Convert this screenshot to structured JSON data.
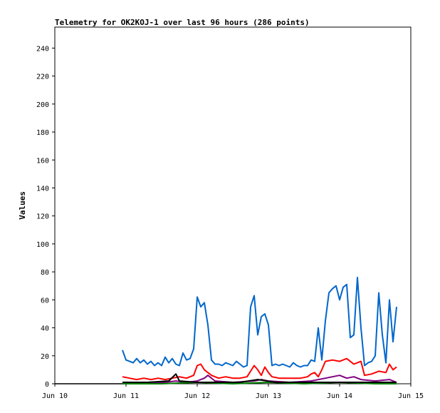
{
  "chart_data": {
    "type": "line",
    "title": "Telemetry for OK2KOJ-1 over last 96 hours (286 points)",
    "xlabel": "",
    "ylabel": "Values",
    "xlim": [
      "Jun 10",
      "Jun 15"
    ],
    "ylim": [
      0,
      255
    ],
    "x_ticks": [
      "Jun 10",
      "Jun 11",
      "Jun 12",
      "Jun 13",
      "Jun 14",
      "Jun 15"
    ],
    "y_ticks": [
      0,
      20,
      40,
      60,
      80,
      100,
      120,
      140,
      160,
      180,
      200,
      220,
      240
    ],
    "grid": false,
    "legend": "none",
    "series": [
      {
        "color": "#0066cc",
        "points": [
          [
            0.95,
            24
          ],
          [
            1.0,
            17
          ],
          [
            1.05,
            16
          ],
          [
            1.1,
            15
          ],
          [
            1.15,
            18
          ],
          [
            1.2,
            15
          ],
          [
            1.25,
            17
          ],
          [
            1.3,
            14
          ],
          [
            1.35,
            16
          ],
          [
            1.4,
            13
          ],
          [
            1.45,
            15
          ],
          [
            1.5,
            13
          ],
          [
            1.55,
            19
          ],
          [
            1.6,
            15
          ],
          [
            1.65,
            18
          ],
          [
            1.7,
            14
          ],
          [
            1.75,
            13
          ],
          [
            1.8,
            22
          ],
          [
            1.85,
            17
          ],
          [
            1.9,
            18
          ],
          [
            1.95,
            25
          ],
          [
            2.0,
            62
          ],
          [
            2.05,
            55
          ],
          [
            2.1,
            58
          ],
          [
            2.15,
            42
          ],
          [
            2.2,
            17
          ],
          [
            2.25,
            14
          ],
          [
            2.3,
            14
          ],
          [
            2.35,
            13
          ],
          [
            2.4,
            15
          ],
          [
            2.45,
            14
          ],
          [
            2.5,
            13
          ],
          [
            2.55,
            16
          ],
          [
            2.6,
            14
          ],
          [
            2.65,
            12
          ],
          [
            2.7,
            13
          ],
          [
            2.75,
            55
          ],
          [
            2.8,
            63
          ],
          [
            2.85,
            35
          ],
          [
            2.9,
            48
          ],
          [
            2.95,
            50
          ],
          [
            3.0,
            42
          ],
          [
            3.05,
            13
          ],
          [
            3.1,
            14
          ],
          [
            3.15,
            13
          ],
          [
            3.2,
            14
          ],
          [
            3.25,
            13
          ],
          [
            3.3,
            12
          ],
          [
            3.35,
            15
          ],
          [
            3.4,
            13
          ],
          [
            3.45,
            12
          ],
          [
            3.5,
            13
          ],
          [
            3.55,
            13
          ],
          [
            3.6,
            17
          ],
          [
            3.65,
            16
          ],
          [
            3.7,
            40
          ],
          [
            3.75,
            17
          ],
          [
            3.8,
            45
          ],
          [
            3.85,
            65
          ],
          [
            3.9,
            68
          ],
          [
            3.95,
            70
          ],
          [
            4.0,
            60
          ],
          [
            4.05,
            69
          ],
          [
            4.1,
            71
          ],
          [
            4.15,
            33
          ],
          [
            4.2,
            35
          ],
          [
            4.25,
            76
          ],
          [
            4.3,
            40
          ],
          [
            4.35,
            13
          ],
          [
            4.4,
            15
          ],
          [
            4.45,
            16
          ],
          [
            4.5,
            20
          ],
          [
            4.55,
            65
          ],
          [
            4.6,
            35
          ],
          [
            4.65,
            15
          ],
          [
            4.7,
            60
          ],
          [
            4.75,
            30
          ],
          [
            4.8,
            55
          ]
        ]
      },
      {
        "color": "#ff0000",
        "points": [
          [
            0.95,
            5
          ],
          [
            1.05,
            4
          ],
          [
            1.15,
            3
          ],
          [
            1.25,
            4
          ],
          [
            1.35,
            3
          ],
          [
            1.45,
            4
          ],
          [
            1.55,
            3
          ],
          [
            1.65,
            4
          ],
          [
            1.75,
            5
          ],
          [
            1.85,
            4
          ],
          [
            1.95,
            6
          ],
          [
            2.0,
            13
          ],
          [
            2.05,
            14
          ],
          [
            2.1,
            10
          ],
          [
            2.15,
            8
          ],
          [
            2.2,
            6
          ],
          [
            2.3,
            4
          ],
          [
            2.4,
            5
          ],
          [
            2.5,
            4
          ],
          [
            2.6,
            4
          ],
          [
            2.7,
            5
          ],
          [
            2.8,
            13
          ],
          [
            2.85,
            10
          ],
          [
            2.9,
            6
          ],
          [
            2.95,
            12
          ],
          [
            3.0,
            8
          ],
          [
            3.05,
            5
          ],
          [
            3.15,
            4
          ],
          [
            3.25,
            4
          ],
          [
            3.35,
            4
          ],
          [
            3.45,
            4
          ],
          [
            3.55,
            5
          ],
          [
            3.6,
            7
          ],
          [
            3.65,
            8
          ],
          [
            3.7,
            5
          ],
          [
            3.75,
            10
          ],
          [
            3.8,
            16
          ],
          [
            3.9,
            17
          ],
          [
            4.0,
            16
          ],
          [
            4.1,
            18
          ],
          [
            4.2,
            14
          ],
          [
            4.3,
            16
          ],
          [
            4.35,
            6
          ],
          [
            4.45,
            7
          ],
          [
            4.55,
            9
          ],
          [
            4.65,
            8
          ],
          [
            4.7,
            14
          ],
          [
            4.75,
            10
          ],
          [
            4.8,
            12
          ]
        ]
      },
      {
        "color": "#800080",
        "points": [
          [
            0.95,
            1
          ],
          [
            1.25,
            1
          ],
          [
            1.55,
            1
          ],
          [
            1.7,
            2
          ],
          [
            1.85,
            1
          ],
          [
            2.0,
            2
          ],
          [
            2.1,
            4
          ],
          [
            2.15,
            6
          ],
          [
            2.25,
            2
          ],
          [
            2.5,
            1
          ],
          [
            2.8,
            2
          ],
          [
            2.9,
            3
          ],
          [
            3.0,
            2
          ],
          [
            3.3,
            1
          ],
          [
            3.6,
            2
          ],
          [
            3.8,
            4
          ],
          [
            3.9,
            5
          ],
          [
            4.0,
            6
          ],
          [
            4.1,
            4
          ],
          [
            4.2,
            5
          ],
          [
            4.3,
            3
          ],
          [
            4.5,
            2
          ],
          [
            4.7,
            3
          ],
          [
            4.8,
            1
          ]
        ]
      },
      {
        "color": "#008000",
        "points": [
          [
            0.95,
            0
          ],
          [
            1.5,
            0
          ],
          [
            2.0,
            1
          ],
          [
            2.5,
            0
          ],
          [
            3.0,
            1
          ],
          [
            3.5,
            0
          ],
          [
            4.0,
            1
          ],
          [
            4.5,
            0
          ],
          [
            4.8,
            0
          ]
        ]
      },
      {
        "color": "#000000",
        "points": [
          [
            0.95,
            1
          ],
          [
            1.3,
            1
          ],
          [
            1.6,
            2
          ],
          [
            1.7,
            7
          ],
          [
            1.75,
            2
          ],
          [
            2.0,
            1
          ],
          [
            2.3,
            1
          ],
          [
            2.6,
            1
          ],
          [
            2.85,
            3
          ],
          [
            3.1,
            1
          ],
          [
            3.4,
            1
          ],
          [
            3.7,
            1
          ],
          [
            4.0,
            1
          ],
          [
            4.3,
            1
          ],
          [
            4.6,
            1
          ],
          [
            4.8,
            1
          ]
        ]
      }
    ]
  }
}
